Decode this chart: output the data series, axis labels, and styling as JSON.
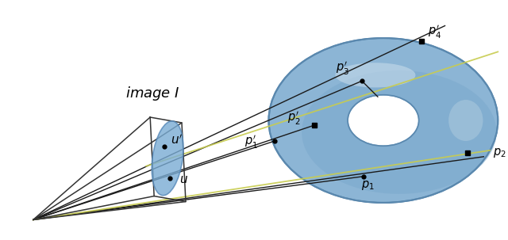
{
  "fig_width": 6.4,
  "fig_height": 3.03,
  "dpi": 100,
  "bg_color": "#ffffff",
  "torus_color": "#8fb8d8",
  "torus_shadow_color": "#6a9cbd",
  "torus_highlight_color": "#b8d0e8",
  "frustum_color": "#333333",
  "image_plane_color": "#7aacd4",
  "line_color_black": "#1a1a1a",
  "line_color_green": "#c8cc50",
  "label_fontsize": 10.5,
  "image_label_fontsize": 13
}
